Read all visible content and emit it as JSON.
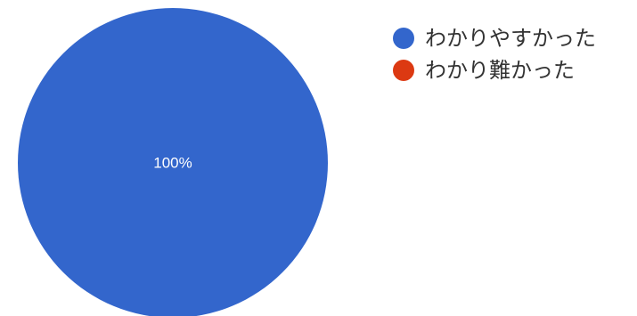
{
  "chart_data": {
    "type": "pie",
    "categories": [
      "わかりやすかった",
      "わかり難かった"
    ],
    "values": [
      100,
      0
    ],
    "data_labels": [
      "100%",
      ""
    ],
    "colors": [
      "#3366cc",
      "#dc3912"
    ],
    "legend_position": "right"
  }
}
